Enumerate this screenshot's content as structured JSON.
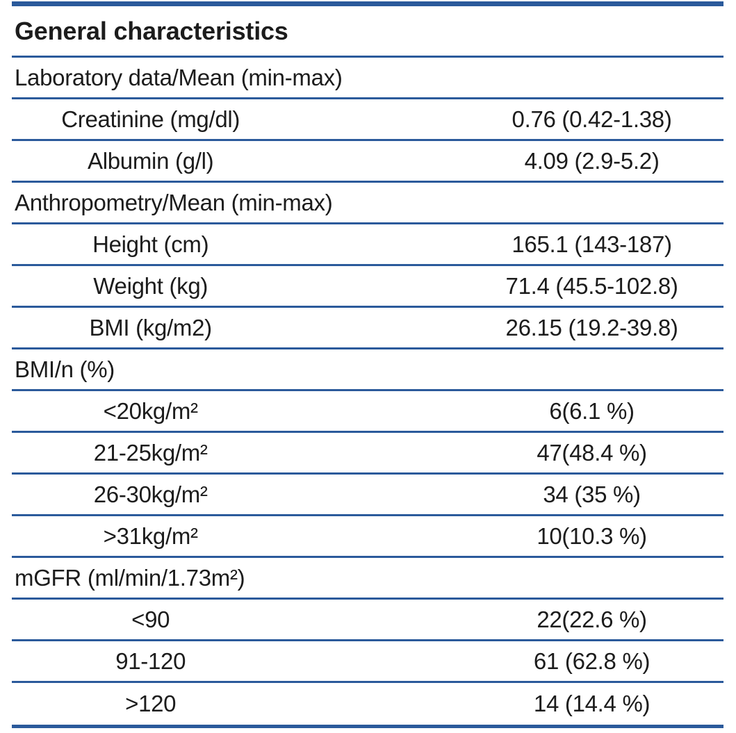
{
  "table": {
    "title": "General characteristics",
    "accent_color": "#2b5a9b",
    "text_color": "#1c1c1c",
    "sections": [
      {
        "header": "Laboratory data/Mean (min-max)",
        "rows": [
          {
            "label": "Creatinine (mg/dl)",
            "value": "0.76 (0.42-1.38)"
          },
          {
            "label": "Albumin (g/l)",
            "value": "4.09 (2.9-5.2)"
          }
        ]
      },
      {
        "header": "Anthropometry/Mean (min-max)",
        "rows": [
          {
            "label": "Height (cm)",
            "value": "165.1 (143-187)"
          },
          {
            "label": "Weight (kg)",
            "value": "71.4 (45.5-102.8)"
          },
          {
            "label": "BMI (kg/m2)",
            "value": "26.15 (19.2-39.8)"
          }
        ]
      },
      {
        "header": "BMI/n (%)",
        "rows": [
          {
            "label": "<20kg/m²",
            "value": "6(6.1 %)"
          },
          {
            "label": "21-25kg/m²",
            "value": "47(48.4 %)"
          },
          {
            "label": "26-30kg/m²",
            "value": "34 (35 %)"
          },
          {
            "label": ">31kg/m²",
            "value": "10(10.3 %)"
          }
        ]
      },
      {
        "header": "mGFR (ml/min/1.73m²)",
        "rows": [
          {
            "label": "<90",
            "value": "22(22.6 %)"
          },
          {
            "label": "91-120",
            "value": "61 (62.8 %)"
          },
          {
            "label": ">120",
            "value": "14 (14.4 %)"
          }
        ]
      }
    ]
  }
}
